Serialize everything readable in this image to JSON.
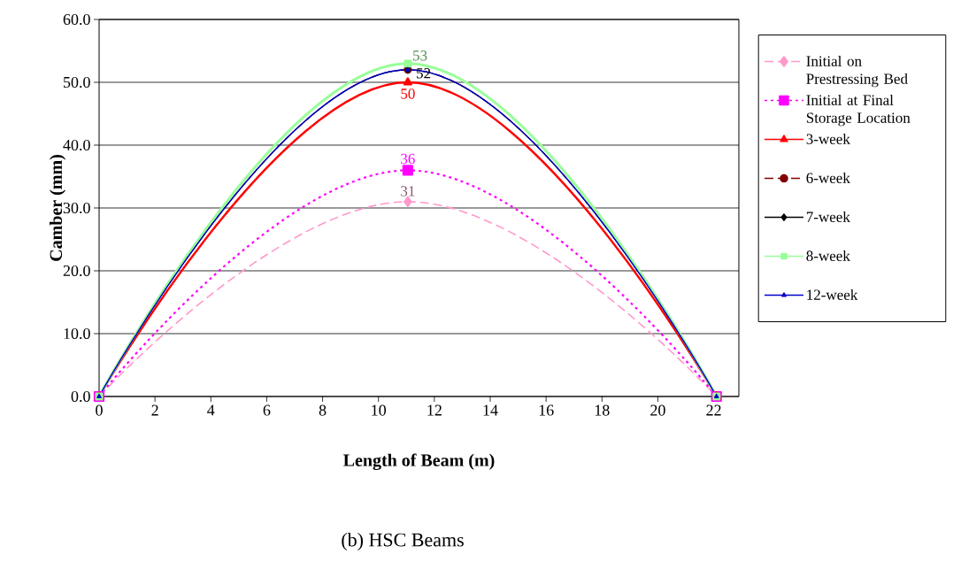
{
  "chart_data": {
    "type": "line",
    "xlabel": "Length of Beam (m)",
    "ylabel": "Camber (mm)",
    "x": [
      0,
      11.05,
      22.1
    ],
    "xlim": [
      0,
      22.9
    ],
    "xticks": [
      0,
      2,
      4,
      6,
      8,
      10,
      12,
      14,
      16,
      18,
      20,
      22
    ],
    "ylim": [
      0,
      60
    ],
    "yticks": [
      {
        "value": 0,
        "label": "0.0"
      },
      {
        "value": 10,
        "label": "10.0"
      },
      {
        "value": 20,
        "label": "20.0"
      },
      {
        "value": 30,
        "label": "30.0"
      },
      {
        "value": 40,
        "label": "40.0"
      },
      {
        "value": 50,
        "label": "50.0"
      },
      {
        "value": 60,
        "label": "60.0"
      }
    ],
    "grid": "y",
    "legend": "right",
    "series": [
      {
        "name": "Initial on Prestressing Bed",
        "color": "#ff99cc",
        "line_style": "dashed",
        "marker": "diamond",
        "values": [
          0,
          31,
          0
        ],
        "value_labels": [
          null,
          "31",
          null
        ]
      },
      {
        "name": "Initial at Final Storage Location",
        "color": "#ff00ff",
        "line_style": "dotted",
        "marker": "square",
        "values": [
          0,
          36,
          0
        ],
        "value_labels": [
          null,
          "36",
          null
        ]
      },
      {
        "name": "3-week",
        "color": "#ff0000",
        "line_style": "solid",
        "marker": "triangle",
        "values": [
          0,
          50,
          0
        ],
        "value_labels": [
          null,
          "50",
          null
        ]
      },
      {
        "name": "6-week",
        "color": "#800000",
        "line_style": "dashed",
        "marker": "circle",
        "values": [
          0,
          52,
          0
        ]
      },
      {
        "name": "7-week",
        "color": "#000000",
        "line_style": "solid",
        "marker": "diamond",
        "values": [
          0,
          52,
          0
        ],
        "value_labels": [
          null,
          "52",
          null
        ]
      },
      {
        "name": "8-week",
        "color": "#99ff99",
        "line_style": "solid",
        "marker": "square",
        "values": [
          0,
          53,
          0
        ],
        "value_labels": [
          null,
          "53",
          null
        ]
      },
      {
        "name": "12-week",
        "color": "#0000cc",
        "line_style": "solid",
        "marker": "triangle",
        "values": [
          0,
          52,
          0
        ]
      }
    ],
    "annotations": [
      "(b)  HSC Beams"
    ]
  }
}
